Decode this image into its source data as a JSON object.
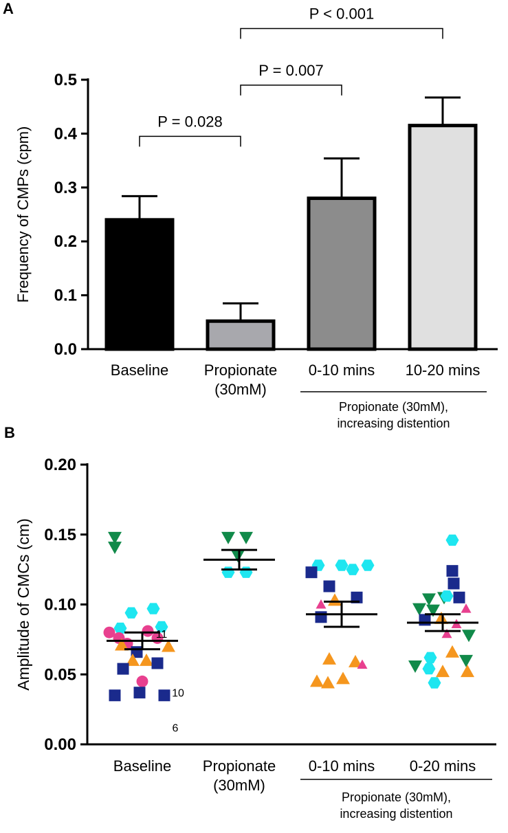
{
  "chart_data": [
    {
      "panel": "A",
      "type": "bar",
      "title": "",
      "ylabel": "Frequency of CMPs (cpm)",
      "xlabel": "",
      "ylim": [
        0,
        0.5
      ],
      "yticks": [
        "0.0",
        "0.1",
        "0.2",
        "0.3",
        "0.4",
        "0.5"
      ],
      "categories": [
        {
          "lines": [
            "Baseline"
          ]
        },
        {
          "lines": [
            "Propionate",
            "(30mM)"
          ]
        },
        {
          "lines": [
            "0-10 mins"
          ]
        },
        {
          "lines": [
            "10-20 mins"
          ]
        }
      ],
      "values": [
        0.24,
        0.052,
        0.28,
        0.415
      ],
      "errors": [
        0.044,
        0.033,
        0.074,
        0.052
      ],
      "colors": [
        "#000000",
        "#a8a8ad",
        "#8c8c8c",
        "#e0e0e0"
      ],
      "comparisons": [
        {
          "from": 0,
          "to": 1,
          "label": "P = 0.028",
          "level": 0.395
        },
        {
          "from": 1,
          "to": 2,
          "label": "P = 0.007",
          "level": 0.49
        },
        {
          "from": 1,
          "to": 3,
          "label": "P < 0.001",
          "level": 0.595
        }
      ],
      "group_label": [
        "Propionate (30mM),",
        "increasing distention"
      ],
      "group_span": [
        2,
        3
      ]
    },
    {
      "panel": "B",
      "type": "scatter",
      "title": "",
      "ylabel": "Amplitude of CMCs (cm)",
      "xlabel": "",
      "ylim": [
        0,
        0.2
      ],
      "yticks": [
        "0.00",
        "0.05",
        "0.10",
        "0.15",
        "0.20"
      ],
      "categories": [
        {
          "lines": [
            "Baseline"
          ]
        },
        {
          "lines": [
            "Propionate",
            "(30mM)"
          ]
        },
        {
          "lines": [
            "0-10 mins"
          ]
        },
        {
          "lines": [
            "0-20 mins"
          ]
        }
      ],
      "marker_colors": {
        "circle": "#e8408f",
        "square": "#1a2a8c",
        "triangle": "#f5961e",
        "hexagon": "#1ee6f0",
        "tri_down": "#118a4a",
        "tri_pink": "#e8408f"
      },
      "groups": [
        {
          "mean": 0.074,
          "sem": 0.006,
          "points": [
            {
              "o": -40,
              "v": 0.148,
              "m": "tri_down"
            },
            {
              "o": -40,
              "v": 0.141,
              "m": "tri_down"
            },
            {
              "o": -16,
              "v": 0.094,
              "m": "hexagon"
            },
            {
              "o": 16,
              "v": 0.097,
              "m": "hexagon"
            },
            {
              "o": -32,
              "v": 0.083,
              "m": "hexagon"
            },
            {
              "o": 28,
              "v": 0.084,
              "m": "hexagon"
            },
            {
              "o": 8,
              "v": 0.081,
              "m": "circle"
            },
            {
              "o": -48,
              "v": 0.08,
              "m": "circle"
            },
            {
              "o": -34,
              "v": 0.076,
              "m": "circle"
            },
            {
              "o": -22,
              "v": 0.072,
              "m": "circle"
            },
            {
              "o": 22,
              "v": 0.076,
              "m": "circle"
            },
            {
              "o": 38,
              "v": 0.07,
              "m": "triangle"
            },
            {
              "o": -30,
              "v": 0.071,
              "m": "triangle"
            },
            {
              "o": -8,
              "v": 0.066,
              "m": "square"
            },
            {
              "o": 6,
              "v": 0.06,
              "m": "triangle"
            },
            {
              "o": 22,
              "v": 0.058,
              "m": "square"
            },
            {
              "o": -14,
              "v": 0.06,
              "m": "triangle"
            },
            {
              "o": -28,
              "v": 0.054,
              "m": "square"
            },
            {
              "o": 0,
              "v": 0.045,
              "m": "circle"
            },
            {
              "o": -40,
              "v": 0.035,
              "m": "square"
            },
            {
              "o": -4,
              "v": 0.037,
              "m": "square"
            },
            {
              "o": 32,
              "v": 0.035,
              "m": "square"
            }
          ],
          "labels": [
            {
              "text": "11",
              "o": 28,
              "v": 0.079
            },
            {
              "text": "10",
              "o": 52,
              "v": 0.037
            },
            {
              "text": "6",
              "o": 48,
              "v": 0.012
            }
          ]
        },
        {
          "mean": 0.132,
          "sem": 0.007,
          "points": [
            {
              "o": -16,
              "v": 0.148,
              "m": "tri_down"
            },
            {
              "o": 10,
              "v": 0.148,
              "m": "tri_down"
            },
            {
              "o": -2,
              "v": 0.135,
              "m": "tri_down"
            },
            {
              "o": -16,
              "v": 0.123,
              "m": "hexagon"
            },
            {
              "o": 10,
              "v": 0.123,
              "m": "hexagon"
            }
          ],
          "labels": []
        },
        {
          "mean": 0.093,
          "sem": 0.009,
          "points": [
            {
              "o": -34,
              "v": 0.128,
              "m": "hexagon"
            },
            {
              "o": 0,
              "v": 0.128,
              "m": "hexagon"
            },
            {
              "o": 38,
              "v": 0.128,
              "m": "hexagon"
            },
            {
              "o": 16,
              "v": 0.125,
              "m": "hexagon"
            },
            {
              "o": -44,
              "v": 0.123,
              "m": "square"
            },
            {
              "o": -18,
              "v": 0.113,
              "m": "square"
            },
            {
              "o": 22,
              "v": 0.105,
              "m": "square"
            },
            {
              "o": -30,
              "v": 0.1,
              "m": "tri_pink"
            },
            {
              "o": -10,
              "v": 0.103,
              "m": "triangle"
            },
            {
              "o": -30,
              "v": 0.091,
              "m": "square"
            },
            {
              "o": -18,
              "v": 0.061,
              "m": "triangle"
            },
            {
              "o": 20,
              "v": 0.059,
              "m": "triangle"
            },
            {
              "o": 30,
              "v": 0.057,
              "m": "tri_pink"
            },
            {
              "o": -36,
              "v": 0.045,
              "m": "triangle"
            },
            {
              "o": 2,
              "v": 0.047,
              "m": "triangle"
            },
            {
              "o": -20,
              "v": 0.044,
              "m": "triangle"
            }
          ],
          "labels": []
        },
        {
          "mean": 0.087,
          "sem": 0.006,
          "points": [
            {
              "o": 14,
              "v": 0.146,
              "m": "hexagon"
            },
            {
              "o": 14,
              "v": 0.124,
              "m": "square"
            },
            {
              "o": 16,
              "v": 0.115,
              "m": "square"
            },
            {
              "o": -20,
              "v": 0.104,
              "m": "tri_down"
            },
            {
              "o": 2,
              "v": 0.105,
              "m": "tri_down"
            },
            {
              "o": 6,
              "v": 0.106,
              "m": "hexagon"
            },
            {
              "o": 24,
              "v": 0.105,
              "m": "square"
            },
            {
              "o": -34,
              "v": 0.097,
              "m": "tri_down"
            },
            {
              "o": -14,
              "v": 0.096,
              "m": "tri_down"
            },
            {
              "o": 34,
              "v": 0.097,
              "m": "tri_pink"
            },
            {
              "o": -26,
              "v": 0.089,
              "m": "square"
            },
            {
              "o": -2,
              "v": 0.09,
              "m": "triangle"
            },
            {
              "o": 20,
              "v": 0.086,
              "m": "tri_pink"
            },
            {
              "o": 6,
              "v": 0.079,
              "m": "tri_pink"
            },
            {
              "o": 38,
              "v": 0.078,
              "m": "tri_down"
            },
            {
              "o": 14,
              "v": 0.066,
              "m": "triangle"
            },
            {
              "o": -18,
              "v": 0.062,
              "m": "hexagon"
            },
            {
              "o": 34,
              "v": 0.06,
              "m": "tri_down"
            },
            {
              "o": -40,
              "v": 0.056,
              "m": "tri_down"
            },
            {
              "o": -20,
              "v": 0.054,
              "m": "hexagon"
            },
            {
              "o": 0,
              "v": 0.052,
              "m": "triangle"
            },
            {
              "o": 36,
              "v": 0.052,
              "m": "triangle"
            },
            {
              "o": -12,
              "v": 0.044,
              "m": "hexagon"
            }
          ],
          "labels": []
        }
      ],
      "group_label": [
        "Propionate (30mM),",
        "increasing distention"
      ],
      "group_span": [
        2,
        3
      ]
    }
  ]
}
